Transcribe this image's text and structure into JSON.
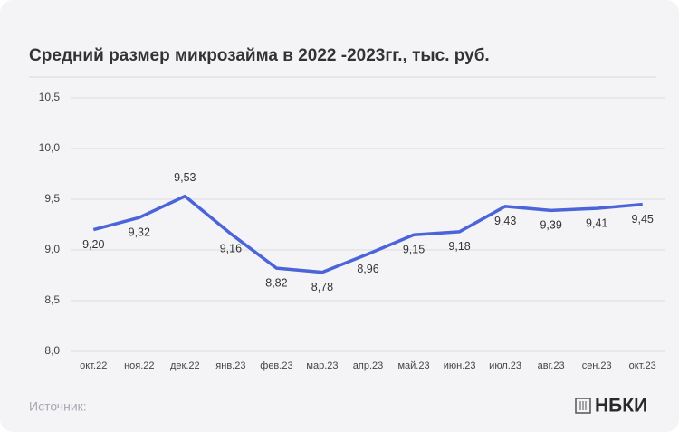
{
  "chart_data": {
    "type": "line",
    "title": "Средний размер микрозайма в 2022 -2023гг., тыс. руб.",
    "categories": [
      "окт.22",
      "ноя.22",
      "дек.22",
      "янв.23",
      "фев.23",
      "мар.23",
      "апр.23",
      "май.23",
      "июн.23",
      "июл.23",
      "авг.23",
      "сен.23",
      "окт.23"
    ],
    "values": [
      9.2,
      9.32,
      9.53,
      9.16,
      8.82,
      8.78,
      8.96,
      9.15,
      9.18,
      9.43,
      9.39,
      9.41,
      9.45
    ],
    "value_labels": [
      "9,20",
      "9,32",
      "9,53",
      "9,16",
      "8,82",
      "8,78",
      "8,96",
      "9,15",
      "9,18",
      "9,43",
      "9,39",
      "9,41",
      "9,45"
    ],
    "color": "#4b64d9",
    "ylim": [
      8.0,
      10.5
    ],
    "yticks": [
      {
        "value": 8.0,
        "label": "8,0"
      },
      {
        "value": 8.5,
        "label": "8,5"
      },
      {
        "value": 9.0,
        "label": "9,0"
      },
      {
        "value": 9.5,
        "label": "9,5"
      },
      {
        "value": 10.0,
        "label": "10,0"
      },
      {
        "value": 10.5,
        "label": "10,5"
      }
    ],
    "grid": true
  },
  "footer": {
    "source": "Источник:",
    "brand": "НБКИ"
  }
}
